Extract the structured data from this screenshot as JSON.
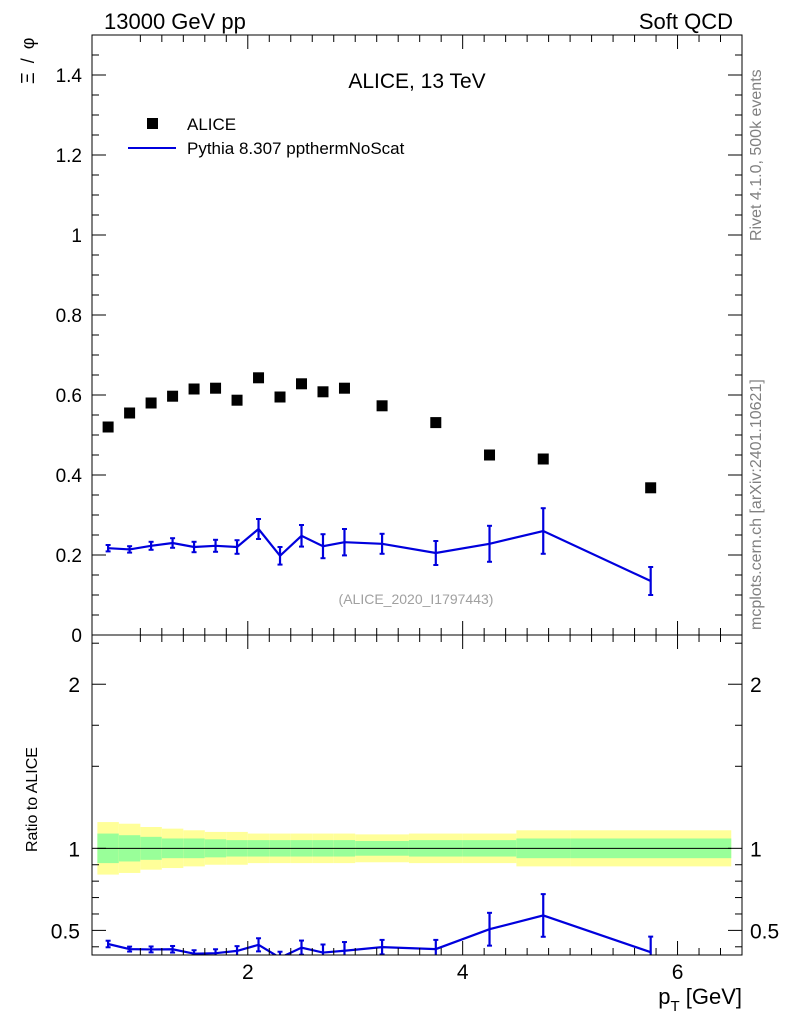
{
  "header": {
    "left": "13000 GeV pp",
    "right": "Soft QCD"
  },
  "side": {
    "rivet": "Rivet 4.1.0,  500k events",
    "source": "mcplots.cern.ch [arXiv:2401.10621]"
  },
  "chart_data": [
    {
      "type": "scatter",
      "title": "ALICE, 13 TeV",
      "ylabel_main": "Ξ",
      "ylabel_slash": "/",
      "ylabel_den": "φ",
      "xlim": [
        0.55,
        6.6
      ],
      "ylim": [
        0,
        1.5
      ],
      "yticks": [
        0,
        0.2,
        0.4,
        0.6,
        0.8,
        1,
        1.2,
        1.4
      ],
      "ytick_labels": [
        "0",
        "0.2",
        "0.4",
        "0.6",
        "0.8",
        "1",
        "1.2",
        "1.4"
      ],
      "legend_position": "top-left",
      "watermark": "(ALICE_2020_I1797443)",
      "series": [
        {
          "name": "ALICE",
          "kind": "markers",
          "color": "#000000",
          "x": [
            0.7,
            0.9,
            1.1,
            1.3,
            1.5,
            1.7,
            1.9,
            2.1,
            2.3,
            2.5,
            2.7,
            2.9,
            3.25,
            3.75,
            4.25,
            4.75,
            5.75
          ],
          "y": [
            0.52,
            0.555,
            0.58,
            0.597,
            0.615,
            0.617,
            0.587,
            0.643,
            0.595,
            0.628,
            0.608,
            0.617,
            0.573,
            0.531,
            0.45,
            0.44,
            0.368
          ]
        },
        {
          "name": "Pythia 8.307 ppthermNoScat",
          "kind": "line",
          "color": "#0000dd",
          "x": [
            0.7,
            0.9,
            1.1,
            1.3,
            1.5,
            1.7,
            1.9,
            2.1,
            2.3,
            2.5,
            2.7,
            2.9,
            3.25,
            3.75,
            4.25,
            4.75,
            5.75
          ],
          "y": [
            0.217,
            0.214,
            0.223,
            0.23,
            0.22,
            0.223,
            0.22,
            0.265,
            0.198,
            0.248,
            0.222,
            0.232,
            0.228,
            0.205,
            0.228,
            0.26,
            0.135
          ],
          "yerr": [
            0.008,
            0.008,
            0.01,
            0.012,
            0.013,
            0.015,
            0.017,
            0.025,
            0.022,
            0.027,
            0.03,
            0.033,
            0.025,
            0.03,
            0.045,
            0.057,
            0.035
          ]
        }
      ]
    },
    {
      "type": "line",
      "ylabel": "Ratio to ALICE",
      "xlabel_p": "p",
      "xlabel_sub": "T",
      "xlabel_unit": " [GeV]",
      "xlim": [
        0.55,
        6.6
      ],
      "ylim": [
        0.35,
        2.3
      ],
      "xticks": [
        2,
        4,
        6
      ],
      "xtick_labels": [
        "2",
        "4",
        "6"
      ],
      "yticks": [
        0.5,
        1,
        2
      ],
      "ytick_labels": [
        "0.5",
        "1",
        "2"
      ],
      "bins": [
        [
          0.6,
          0.8
        ],
        [
          0.8,
          1.0
        ],
        [
          1.0,
          1.2
        ],
        [
          1.2,
          1.4
        ],
        [
          1.4,
          1.6
        ],
        [
          1.6,
          1.8
        ],
        [
          1.8,
          2.0
        ],
        [
          2.0,
          2.2
        ],
        [
          2.2,
          2.4
        ],
        [
          2.4,
          2.6
        ],
        [
          2.6,
          2.8
        ],
        [
          2.8,
          3.0
        ],
        [
          3.0,
          3.5
        ],
        [
          3.5,
          4.0
        ],
        [
          4.0,
          4.5
        ],
        [
          4.5,
          5.0
        ],
        [
          5.0,
          6.5
        ]
      ],
      "band_outer": [
        0.16,
        0.15,
        0.13,
        0.12,
        0.11,
        0.1,
        0.1,
        0.09,
        0.09,
        0.09,
        0.09,
        0.09,
        0.085,
        0.09,
        0.09,
        0.11,
        0.11
      ],
      "band_inner": [
        0.09,
        0.08,
        0.07,
        0.06,
        0.06,
        0.055,
        0.05,
        0.05,
        0.05,
        0.05,
        0.05,
        0.05,
        0.045,
        0.05,
        0.05,
        0.06,
        0.06
      ],
      "band_outer_color": "#ffff99",
      "band_inner_color": "#99ff99",
      "series": [
        {
          "name": "Pythia 8.307 ppthermNoScat / ALICE",
          "color": "#0000dd",
          "x": [
            0.7,
            0.9,
            1.1,
            1.3,
            1.5,
            1.7,
            1.9,
            2.1,
            2.3,
            2.5,
            2.7,
            2.9,
            3.25,
            3.75,
            4.25,
            4.75,
            5.75
          ],
          "y": [
            0.417,
            0.386,
            0.384,
            0.385,
            0.358,
            0.361,
            0.375,
            0.412,
            0.333,
            0.395,
            0.365,
            0.376,
            0.398,
            0.386,
            0.507,
            0.591,
            0.367
          ],
          "yerr": [
            0.02,
            0.015,
            0.018,
            0.02,
            0.021,
            0.024,
            0.029,
            0.04,
            0.037,
            0.043,
            0.049,
            0.053,
            0.044,
            0.056,
            0.1,
            0.13,
            0.095
          ]
        }
      ]
    }
  ]
}
